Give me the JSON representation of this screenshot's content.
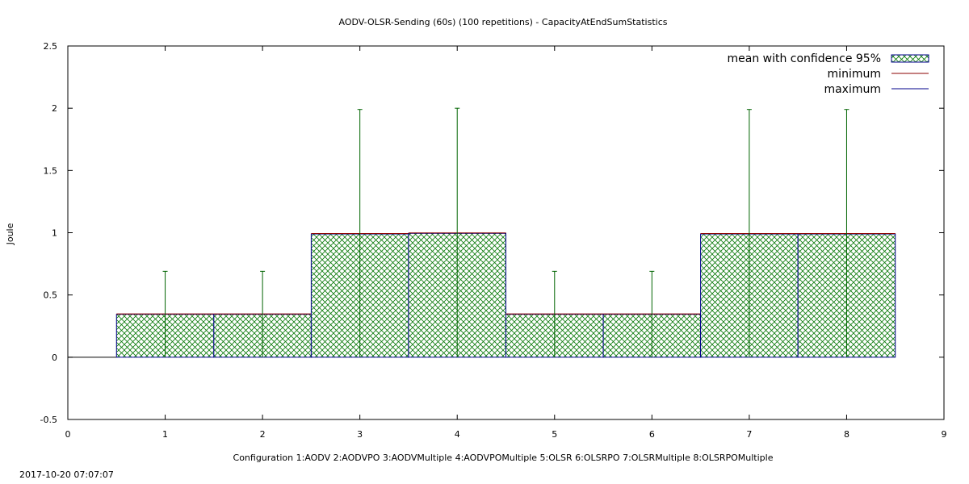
{
  "chart_data": {
    "type": "bar",
    "title": "AODV-OLSR-Sending (60s) (100 repetitions) - CapacityAtEndSumStatistics",
    "xlabel": "Configuration 1:AODV  2:AODVPO  3:AODVMultiple  4:AODVPOMultiple  5:OLSR  6:OLSRPO  7:OLSRMultiple  8:OLSRPOMultiple",
    "ylabel": "Joule",
    "xlim": [
      0,
      9
    ],
    "ylim": [
      -0.5,
      2.5
    ],
    "xticks": [
      "0",
      "1",
      "2",
      "3",
      "4",
      "5",
      "6",
      "7",
      "8",
      "9"
    ],
    "yticks": [
      "-0.5",
      "0",
      "0.5",
      "1",
      "1.5",
      "2",
      "2.5"
    ],
    "grid": false,
    "legend_position": "top-right",
    "x": [
      1,
      2,
      3,
      4,
      5,
      6,
      7,
      8
    ],
    "series": [
      {
        "name": "mean with confidence 95%",
        "values": [
          0.345,
          0.345,
          0.99,
          0.995,
          0.345,
          0.345,
          0.99,
          0.99
        ]
      },
      {
        "name": "minimum",
        "values": [
          0,
          0,
          0,
          0,
          0,
          0,
          0,
          0
        ]
      },
      {
        "name": "maximum",
        "values": [
          0.69,
          0.69,
          1.99,
          2.0,
          0.69,
          0.69,
          1.99,
          1.99
        ]
      }
    ],
    "colors": {
      "fill": "#0a7a0a",
      "minimum": "#8b0000",
      "maximum": "#00008b",
      "whisker": "#006400"
    }
  },
  "footer": {
    "timestamp": "2017-10-20 07:07:07"
  }
}
